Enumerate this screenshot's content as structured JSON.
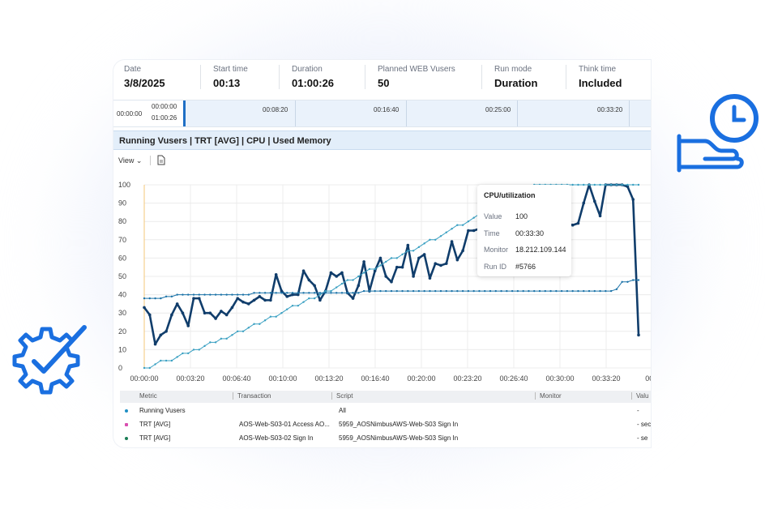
{
  "header": {
    "fields": [
      {
        "label": "Date",
        "value": "3/8/2025"
      },
      {
        "label": "Start time",
        "value": "00:13"
      },
      {
        "label": "Duration",
        "value": "01:00:26"
      },
      {
        "label": "Planned WEB Vusers",
        "value": "50"
      },
      {
        "label": "Run mode",
        "value": "Duration"
      },
      {
        "label": "Think time",
        "value": "Included"
      }
    ]
  },
  "timeline": {
    "start": "00:00:00",
    "sel_start": "00:00:00",
    "sel_end": "01:00:26",
    "ticks": [
      "00:08:20",
      "00:16:40",
      "00:25:00",
      "00:33:20"
    ]
  },
  "graph": {
    "title": "Running Vusers | TRT [AVG] | CPU | Used Memory",
    "view_label": "View ⌄"
  },
  "tooltip": {
    "title": "CPU/utilization",
    "rows": [
      {
        "key": "Value",
        "value": "100"
      },
      {
        "key": "Time",
        "value": "00:33:30"
      },
      {
        "key": "Monitor",
        "value": "18.212.109.144"
      },
      {
        "key": "Run ID",
        "value": "#5766"
      }
    ]
  },
  "chart_data": {
    "type": "line",
    "yticks": [
      "100",
      "90",
      "80",
      "70",
      "60",
      "50",
      "40",
      "30",
      "20",
      "10",
      "0"
    ],
    "xticks": [
      "00:00:00",
      "00:03:20",
      "00:06:40",
      "00:10:00",
      "00:13:20",
      "00:16:40",
      "00:20:00",
      "00:23:20",
      "00:26:40",
      "00:30:00",
      "00:33:20",
      "00:3"
    ],
    "ylim": [
      0,
      100
    ],
    "series": [
      {
        "name": "CPU/utilization",
        "color": "#103d6b",
        "values": [
          33,
          29,
          13,
          18,
          20,
          29,
          35,
          30,
          23,
          38,
          38,
          30,
          30,
          27,
          31,
          29,
          33,
          38,
          36,
          35,
          37,
          39,
          37,
          37,
          51,
          42,
          39,
          40,
          40,
          53,
          48,
          45,
          37,
          42,
          52,
          50,
          52,
          41,
          38,
          45,
          58,
          42,
          53,
          60,
          50,
          47,
          55,
          55,
          67,
          50,
          60,
          62,
          49,
          57,
          56,
          57,
          69,
          59,
          64,
          75,
          75,
          76,
          62,
          62,
          64,
          70,
          80,
          72,
          69,
          68,
          78,
          80,
          91,
          72,
          76,
          70,
          71,
          79,
          78,
          79,
          90,
          100,
          91,
          83,
          100,
          100,
          100,
          100,
          99,
          92,
          18
        ]
      },
      {
        "name": "Running Vusers",
        "color": "#3aa0c2",
        "values": [
          0,
          0,
          2,
          4,
          4,
          4,
          6,
          8,
          8,
          10,
          10,
          12,
          14,
          14,
          16,
          16,
          18,
          20,
          20,
          22,
          24,
          24,
          26,
          28,
          28,
          30,
          32,
          34,
          34,
          36,
          38,
          38,
          40,
          42,
          42,
          44,
          46,
          48,
          48,
          50,
          52,
          54,
          54,
          56,
          58,
          60,
          60,
          62,
          64,
          64,
          66,
          68,
          70,
          70,
          72,
          74,
          76,
          78,
          78,
          80,
          82,
          84,
          86,
          86,
          88,
          90,
          92,
          92,
          94,
          96,
          98,
          100,
          100,
          100,
          100,
          100,
          100,
          100,
          100,
          100,
          100,
          100,
          100,
          100,
          100,
          100,
          100,
          100,
          100,
          100,
          100
        ]
      },
      {
        "name": "Used Memory",
        "color": "#1c73a8",
        "values": [
          38,
          38,
          38,
          38,
          39,
          39,
          40,
          40,
          40,
          40,
          40,
          40,
          40,
          40,
          40,
          40,
          40,
          40,
          40,
          40,
          41,
          41,
          41,
          41,
          41,
          41,
          41,
          41,
          41,
          41,
          41,
          41,
          41,
          41,
          41,
          41,
          41,
          41,
          41,
          41,
          42,
          42,
          42,
          42,
          42,
          42,
          42,
          42,
          42,
          42,
          42,
          42,
          42,
          42,
          42,
          42,
          42,
          42,
          42,
          42,
          42,
          42,
          42,
          42,
          42,
          42,
          42,
          42,
          42,
          42,
          42,
          42,
          42,
          42,
          42,
          42,
          42,
          42,
          42,
          42,
          42,
          42,
          42,
          42,
          42,
          42,
          43,
          47,
          47,
          48,
          48
        ]
      }
    ]
  },
  "table": {
    "headers": [
      "Metric",
      "Transaction",
      "Script",
      "Monitor",
      "Valu"
    ],
    "rows": [
      {
        "color": "#1f8fc4",
        "metric": "Running Vusers",
        "transaction": "",
        "script": "All",
        "monitor": "",
        "value": "-"
      },
      {
        "color": "#d94fb0",
        "metric": "TRT [AVG]",
        "transaction": "AOS-Web-S03-01 Access AO...",
        "script": "5959_AOSNimbusAWS-Web-S03 Sign In",
        "monitor": "",
        "value": "- sec"
      },
      {
        "color": "#1a7d55",
        "metric": "TRT [AVG]",
        "transaction": "AOS-Web-S03-02 Sign In",
        "script": "5959_AOSNimbusAWS-Web-S03 Sign In",
        "monitor": "",
        "value": "- se"
      }
    ]
  }
}
